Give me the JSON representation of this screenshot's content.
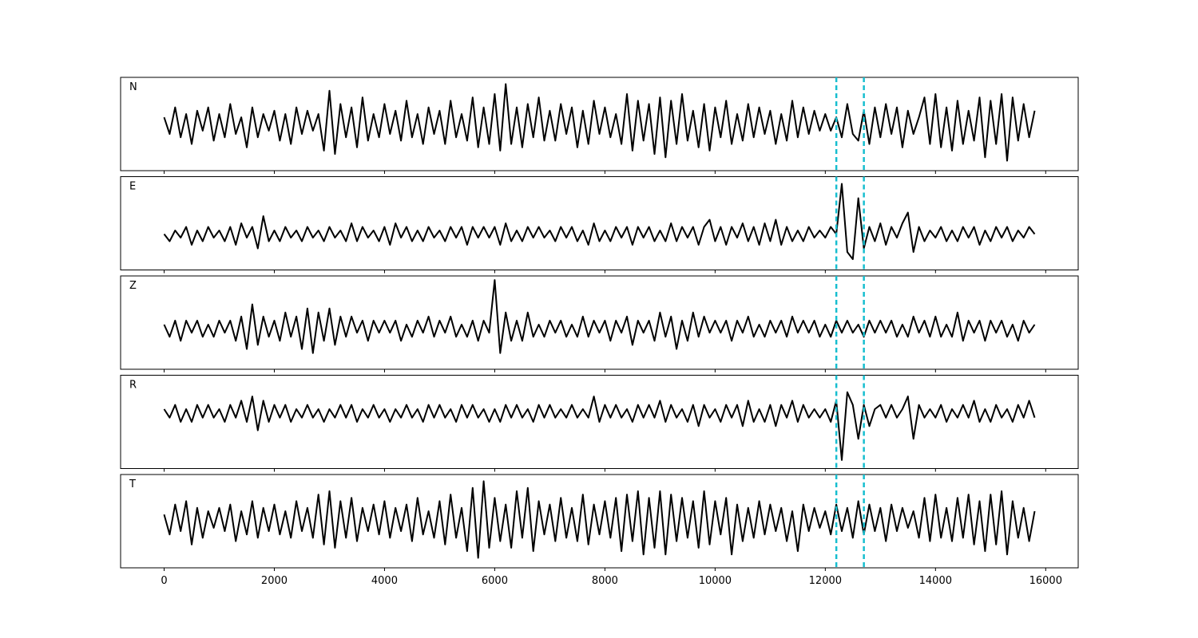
{
  "chart_data": {
    "type": "line",
    "x": [
      0,
      100,
      200,
      300,
      400,
      500,
      600,
      700,
      800,
      900,
      1000,
      1100,
      1200,
      1300,
      1400,
      1500,
      1600,
      1700,
      1800,
      1900,
      2000,
      2100,
      2200,
      2300,
      2400,
      2500,
      2600,
      2700,
      2800,
      2900,
      3000,
      3100,
      3200,
      3300,
      3400,
      3500,
      3600,
      3700,
      3800,
      3900,
      4000,
      4100,
      4200,
      4300,
      4400,
      4500,
      4600,
      4700,
      4800,
      4900,
      5000,
      5100,
      5200,
      5300,
      5400,
      5500,
      5600,
      5700,
      5800,
      5900,
      6000,
      6100,
      6200,
      6300,
      6400,
      6500,
      6600,
      6700,
      6800,
      6900,
      7000,
      7100,
      7200,
      7300,
      7400,
      7500,
      7600,
      7700,
      7800,
      7900,
      8000,
      8100,
      8200,
      8300,
      8400,
      8500,
      8600,
      8700,
      8800,
      8900,
      9000,
      9100,
      9200,
      9300,
      9400,
      9500,
      9600,
      9700,
      9800,
      9900,
      10000,
      10100,
      10200,
      10300,
      10400,
      10500,
      10600,
      10700,
      10800,
      10900,
      11000,
      11100,
      11200,
      11300,
      11400,
      11500,
      11600,
      11700,
      11800,
      11900,
      12000,
      12100,
      12200,
      12300,
      12400,
      12500,
      12600,
      12700,
      12800,
      12900,
      13000,
      13100,
      13200,
      13300,
      13400,
      13500,
      13600,
      13700,
      13800,
      13900,
      14000,
      14100,
      14200,
      14300,
      14400,
      14500,
      14600,
      14700,
      14800,
      14900,
      15000,
      15100,
      15200,
      15300,
      15400,
      15500,
      15600,
      15700,
      15800
    ],
    "series": [
      {
        "name": "N",
        "color": "#000000",
        "ylim": [
          -14,
          14
        ],
        "values": [
          2,
          -3,
          5,
          -4,
          3,
          -6,
          4,
          -2,
          5,
          -5,
          3,
          -4,
          6,
          -3,
          2,
          -7,
          5,
          -4,
          3,
          -2,
          4,
          -5,
          3,
          -6,
          5,
          -3,
          4,
          -2,
          3,
          -8,
          10,
          -9,
          6,
          -4,
          5,
          -7,
          8,
          -5,
          3,
          -4,
          6,
          -3,
          4,
          -5,
          7,
          -4,
          3,
          -6,
          5,
          -3,
          4,
          -6,
          7,
          -4,
          3,
          -5,
          8,
          -7,
          5,
          -6,
          9,
          -8,
          12,
          -6,
          5,
          -7,
          6,
          -4,
          8,
          -5,
          4,
          -5,
          6,
          -3,
          5,
          -7,
          4,
          -6,
          7,
          -3,
          5,
          -4,
          3,
          -6,
          9,
          -8,
          7,
          -5,
          6,
          -9,
          8,
          -10,
          7,
          -6,
          9,
          -5,
          4,
          -7,
          6,
          -8,
          5,
          -4,
          7,
          -6,
          3,
          -5,
          6,
          -4,
          5,
          -3,
          4,
          -6,
          3,
          -5,
          7,
          -4,
          5,
          -3,
          4,
          -2,
          3,
          -2,
          2,
          -4,
          6,
          -3,
          -5,
          4,
          -6,
          5,
          -4,
          6,
          -3,
          5,
          -7,
          4,
          -3,
          2,
          8,
          -6,
          9,
          -7,
          5,
          -8,
          7,
          -6,
          4,
          -5,
          8,
          -10,
          7,
          -6,
          9,
          -11,
          8,
          -5,
          6,
          -4,
          4
        ]
      },
      {
        "name": "E",
        "color": "#000000",
        "ylim": [
          -10,
          16
        ],
        "values": [
          0,
          -2,
          1,
          -1,
          2,
          -3,
          1,
          -2,
          2,
          -1,
          1,
          -2,
          2,
          -3,
          3,
          -1,
          2,
          -4,
          5,
          -2,
          1,
          -2,
          2,
          -1,
          1,
          -2,
          2,
          -1,
          1,
          -2,
          2,
          -1,
          1,
          -2,
          3,
          -2,
          2,
          -1,
          1,
          -2,
          2,
          -3,
          3,
          -1,
          2,
          -2,
          1,
          -2,
          2,
          -1,
          1,
          -2,
          2,
          -1,
          2,
          -3,
          2,
          -1,
          2,
          -1,
          2,
          -3,
          3,
          -2,
          1,
          -2,
          2,
          -1,
          2,
          -1,
          1,
          -2,
          2,
          -1,
          2,
          -2,
          1,
          -3,
          3,
          -2,
          1,
          -2,
          2,
          -1,
          2,
          -3,
          2,
          -1,
          2,
          -2,
          1,
          -2,
          3,
          -2,
          2,
          -1,
          2,
          -3,
          2,
          4,
          -2,
          2,
          -3,
          2,
          -1,
          3,
          -2,
          2,
          -3,
          3,
          -2,
          4,
          -3,
          2,
          -2,
          1,
          -2,
          2,
          -1,
          1,
          -1,
          2,
          0,
          14,
          -5,
          -7,
          10,
          -4,
          2,
          -2,
          3,
          -3,
          2,
          -1,
          3,
          6,
          -5,
          2,
          -2,
          1,
          -1,
          2,
          -2,
          1,
          -2,
          2,
          -1,
          2,
          -3,
          1,
          -2,
          2,
          -1,
          2,
          -2,
          1,
          -1,
          2,
          0
        ]
      },
      {
        "name": "Z",
        "color": "#000000",
        "ylim": [
          -10,
          13
        ],
        "values": [
          1,
          -2,
          2,
          -3,
          2,
          -1,
          2,
          -2,
          1,
          -2,
          2,
          -1,
          2,
          -3,
          3,
          -5,
          6,
          -4,
          3,
          -2,
          2,
          -3,
          4,
          -2,
          3,
          -5,
          5,
          -6,
          4,
          -3,
          5,
          -4,
          3,
          -2,
          3,
          -1,
          2,
          -3,
          2,
          -1,
          2,
          -1,
          2,
          -3,
          1,
          -2,
          2,
          -1,
          3,
          -2,
          2,
          -1,
          3,
          -2,
          1,
          -2,
          2,
          -3,
          2,
          -1,
          12,
          -6,
          4,
          -3,
          2,
          -3,
          4,
          -2,
          1,
          -2,
          2,
          -1,
          2,
          -2,
          1,
          -2,
          3,
          -2,
          2,
          -1,
          2,
          -3,
          2,
          -1,
          3,
          -4,
          2,
          -1,
          2,
          -3,
          4,
          -2,
          3,
          -5,
          2,
          -3,
          4,
          -2,
          3,
          -1,
          2,
          -1,
          2,
          -3,
          2,
          -1,
          3,
          -2,
          1,
          -2,
          2,
          -1,
          2,
          -2,
          3,
          -1,
          2,
          -1,
          2,
          -2,
          1,
          -2,
          2,
          -1,
          2,
          -1,
          1,
          -2,
          2,
          -1,
          2,
          -1,
          2,
          -2,
          1,
          -2,
          3,
          -1,
          2,
          -2,
          3,
          -2,
          1,
          -2,
          4,
          -3,
          2,
          -1,
          2,
          -3,
          2,
          -1,
          2,
          -2,
          1,
          -3,
          2,
          -1,
          1
        ]
      },
      {
        "name": "R",
        "color": "#000000",
        "ylim": [
          -13,
          9
        ],
        "values": [
          1,
          -1,
          2,
          -2,
          1,
          -2,
          2,
          -1,
          2,
          -1,
          1,
          -2,
          2,
          -1,
          3,
          -2,
          4,
          -4,
          3,
          -2,
          2,
          -1,
          2,
          -2,
          1,
          -1,
          2,
          -1,
          1,
          -2,
          1,
          -1,
          2,
          -1,
          2,
          -2,
          1,
          -1,
          2,
          -1,
          1,
          -2,
          1,
          -1,
          2,
          -1,
          1,
          -2,
          2,
          -1,
          2,
          -1,
          1,
          -2,
          2,
          -1,
          2,
          -1,
          1,
          -2,
          1,
          -2,
          2,
          -1,
          2,
          -1,
          1,
          -2,
          2,
          -1,
          2,
          -1,
          1,
          -1,
          2,
          -1,
          1,
          -1,
          4,
          -2,
          2,
          -1,
          2,
          -1,
          1,
          -2,
          2,
          -1,
          2,
          -1,
          3,
          -2,
          2,
          -1,
          1,
          -2,
          2,
          -3,
          2,
          -1,
          1,
          -2,
          2,
          -1,
          2,
          -3,
          3,
          -2,
          1,
          -2,
          2,
          -3,
          2,
          -1,
          3,
          -2,
          2,
          -1,
          1,
          -1,
          1,
          -2,
          3,
          -11,
          5,
          2,
          -6,
          2,
          -3,
          1,
          2,
          -1,
          2,
          -1,
          1,
          4,
          -6,
          2,
          -1,
          1,
          -1,
          2,
          -2,
          1,
          -1,
          2,
          -1,
          3,
          -2,
          1,
          -2,
          2,
          -1,
          1,
          -2,
          2,
          -1,
          3,
          -1
        ]
      },
      {
        "name": "T",
        "color": "#000000",
        "ylim": [
          -14,
          14
        ],
        "values": [
          2,
          -4,
          5,
          -3,
          6,
          -7,
          4,
          -5,
          3,
          -2,
          4,
          -3,
          5,
          -6,
          3,
          -4,
          6,
          -5,
          4,
          -3,
          5,
          -4,
          3,
          -5,
          6,
          -3,
          4,
          -5,
          8,
          -7,
          9,
          -8,
          6,
          -5,
          7,
          -6,
          4,
          -3,
          5,
          -4,
          6,
          -5,
          4,
          -3,
          5,
          -6,
          7,
          -4,
          3,
          -5,
          6,
          -7,
          8,
          -5,
          4,
          -9,
          10,
          -11,
          12,
          -8,
          7,
          -6,
          5,
          -8,
          9,
          -5,
          10,
          -9,
          6,
          -4,
          5,
          -6,
          7,
          -5,
          4,
          -6,
          8,
          -7,
          5,
          -4,
          6,
          -5,
          7,
          -9,
          8,
          -6,
          9,
          -10,
          7,
          -8,
          9,
          -10,
          8,
          -6,
          7,
          -5,
          6,
          -8,
          9,
          -7,
          6,
          -4,
          7,
          -10,
          5,
          -6,
          4,
          -5,
          6,
          -4,
          5,
          -3,
          4,
          -6,
          3,
          -9,
          5,
          -3,
          4,
          -2,
          3,
          -4,
          5,
          -3,
          4,
          -5,
          6,
          -4,
          5,
          -3,
          4,
          -6,
          5,
          -3,
          4,
          -2,
          3,
          -5,
          7,
          -6,
          8,
          -5,
          4,
          -6,
          7,
          -5,
          8,
          -7,
          6,
          -9,
          8,
          -7,
          9,
          -10,
          6,
          -5,
          4,
          -6,
          3
        ]
      }
    ],
    "vlines": [
      12200,
      12700
    ],
    "vline_color": "#17becf",
    "xlim": [
      -790,
      16590
    ],
    "xticks": [
      0,
      2000,
      4000,
      6000,
      8000,
      10000,
      12000,
      14000,
      16000
    ]
  }
}
